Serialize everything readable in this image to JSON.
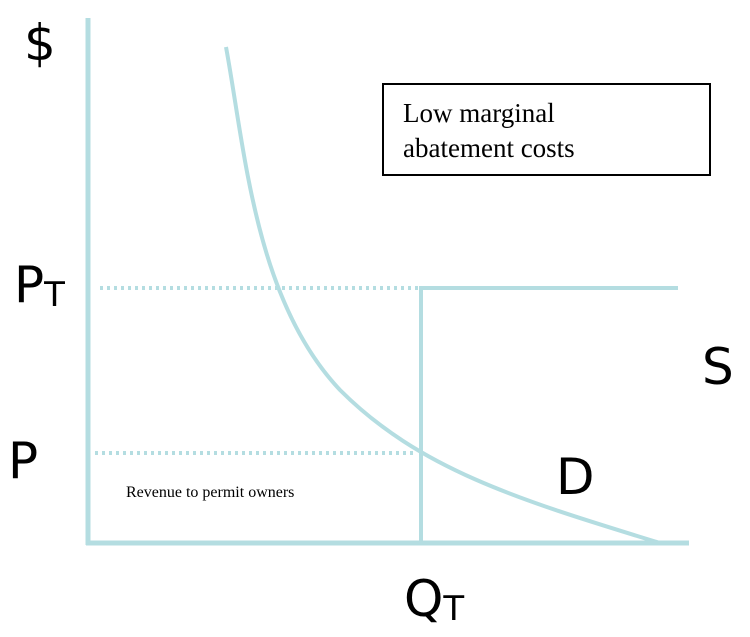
{
  "axis_labels": {
    "y": "$",
    "x": {
      "main": "Q",
      "sub": "T"
    }
  },
  "price_labels": {
    "tax_price": {
      "main": "P",
      "sub": "T"
    },
    "price": "P"
  },
  "curve_labels": {
    "supply": "S",
    "demand": "D"
  },
  "box": {
    "lines": [
      "Low marginal",
      "abatement costs"
    ]
  },
  "area_label": "Revenue to permit owners"
}
